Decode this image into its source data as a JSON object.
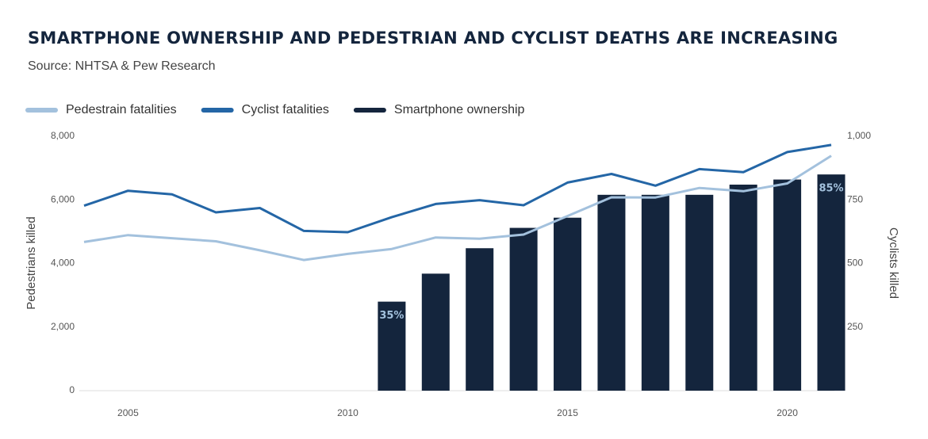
{
  "chart_data": {
    "type": "line",
    "title": "SMARTPHONE OWNERSHIP AND PEDESTRIAN AND CYCLIST DEATHS ARE INCREASING",
    "subtitle": "Source: NHTSA & Pew Research",
    "ylabel": "Pedestrians killed",
    "y2label": "Cyclists killed",
    "xlim": [
      2004,
      2021
    ],
    "xticks": [
      2005,
      2010,
      2015,
      2020
    ],
    "ylim": [
      0,
      8000
    ],
    "yticks": [
      0,
      {
        "value": 2000,
        "label": "2,000"
      },
      {
        "value": 4000,
        "label": "4,000"
      },
      {
        "value": 6000,
        "label": "6,000"
      },
      {
        "value": 8000,
        "label": "8,000"
      }
    ],
    "y2lim": [
      0,
      1000
    ],
    "y2ticks": [
      250,
      500,
      750,
      {
        "value": 1000,
        "label": "1,000"
      }
    ],
    "x": [
      2004,
      2005,
      2006,
      2007,
      2008,
      2009,
      2010,
      2011,
      2012,
      2013,
      2014,
      2015,
      2016,
      2017,
      2018,
      2019,
      2020,
      2021
    ],
    "series": [
      {
        "name": "Pedestrain fatalities",
        "color": "#a3c1dd",
        "values": [
          4675,
          4892,
          4795,
          4699,
          4414,
          4109,
          4302,
          4457,
          4818,
          4779,
          4910,
          5494,
          6080,
          6075,
          6374,
          6272,
          6516,
          7388
        ]
      },
      {
        "name": "Cyclist fatalities",
        "color": "#2466a6",
        "axis": "y2",
        "values": [
          727,
          786,
          772,
          701,
          718,
          628,
          623,
          682,
          734,
          749,
          729,
          818,
          852,
          806,
          871,
          859,
          938,
          966
        ]
      },
      {
        "name": "Smartphone ownership",
        "type": "bar",
        "color": "#14253d",
        "label_color": "#a3c1dd",
        "x": [
          2011,
          2012,
          2013,
          2014,
          2015,
          2016,
          2017,
          2018,
          2019,
          2020,
          2021
        ],
        "values": [
          35,
          46,
          56,
          64,
          68,
          77,
          77,
          77,
          81,
          83,
          85
        ],
        "value_labels": [
          "35%",
          null,
          null,
          null,
          null,
          null,
          null,
          null,
          null,
          null,
          "85%"
        ]
      }
    ]
  }
}
